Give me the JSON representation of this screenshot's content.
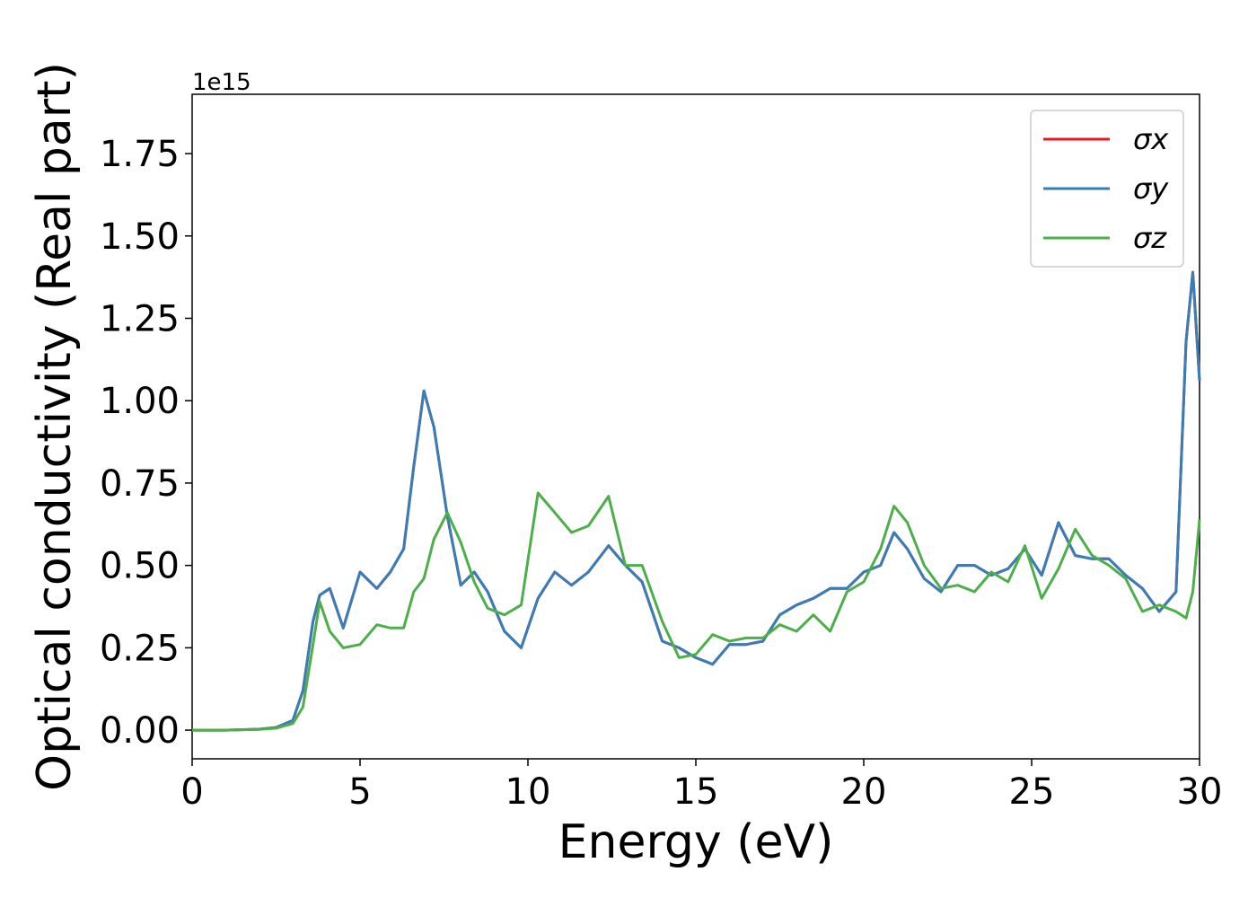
{
  "chart_data": {
    "type": "line",
    "xlabel": "Energy (eV)",
    "ylabel": "Optical conductivity (Real part)",
    "y_offset_text": "1e15",
    "x": [
      0,
      1,
      2,
      2.5,
      3,
      3.3,
      3.6,
      3.8,
      4.1,
      4.5,
      5,
      5.5,
      5.9,
      6.3,
      6.6,
      6.9,
      7.2,
      7.6,
      8,
      8.4,
      8.8,
      9.3,
      9.8,
      10.3,
      10.8,
      11.3,
      11.8,
      12.4,
      12.9,
      13.4,
      14,
      14.5,
      15,
      15.5,
      16,
      16.5,
      17,
      17.5,
      18,
      18.5,
      19,
      19.5,
      20,
      20.5,
      20.9,
      21.3,
      21.8,
      22.3,
      22.8,
      23.3,
      23.8,
      24.3,
      24.8,
      25.3,
      25.8,
      26.3,
      26.8,
      27.3,
      27.8,
      28.3,
      28.8,
      29.3,
      29.6,
      29.8,
      30
    ],
    "series": [
      {
        "name": "σx",
        "color": "#e41a1c",
        "values": [
          0,
          0,
          0.003,
          0.008,
          0.03,
          0.12,
          0.33,
          0.41,
          0.43,
          0.31,
          0.48,
          0.43,
          0.48,
          0.55,
          0.8,
          1.03,
          0.92,
          0.65,
          0.44,
          0.48,
          0.42,
          0.3,
          0.25,
          0.4,
          0.48,
          0.44,
          0.48,
          0.56,
          0.5,
          0.45,
          0.27,
          0.25,
          0.22,
          0.2,
          0.26,
          0.26,
          0.27,
          0.35,
          0.38,
          0.4,
          0.43,
          0.43,
          0.48,
          0.5,
          0.6,
          0.55,
          0.46,
          0.42,
          0.5,
          0.5,
          0.47,
          0.49,
          0.55,
          0.47,
          0.63,
          0.53,
          0.52,
          0.52,
          0.47,
          0.43,
          0.36,
          0.42,
          1.18,
          1.39,
          1.06
        ]
      },
      {
        "name": "σy",
        "color": "#377eb8",
        "values": [
          0,
          0,
          0.003,
          0.008,
          0.03,
          0.12,
          0.33,
          0.41,
          0.43,
          0.31,
          0.48,
          0.43,
          0.48,
          0.55,
          0.8,
          1.03,
          0.92,
          0.65,
          0.44,
          0.48,
          0.42,
          0.3,
          0.25,
          0.4,
          0.48,
          0.44,
          0.48,
          0.56,
          0.5,
          0.45,
          0.27,
          0.25,
          0.22,
          0.2,
          0.26,
          0.26,
          0.27,
          0.35,
          0.38,
          0.4,
          0.43,
          0.43,
          0.48,
          0.5,
          0.6,
          0.55,
          0.46,
          0.42,
          0.5,
          0.5,
          0.47,
          0.49,
          0.55,
          0.47,
          0.63,
          0.53,
          0.52,
          0.52,
          0.47,
          0.43,
          0.36,
          0.42,
          1.18,
          1.39,
          1.06
        ]
      },
      {
        "name": "σz",
        "color": "#4daf4a",
        "values": [
          0,
          0,
          0.002,
          0.006,
          0.02,
          0.07,
          0.26,
          0.39,
          0.3,
          0.25,
          0.26,
          0.32,
          0.31,
          0.31,
          0.42,
          0.46,
          0.58,
          0.66,
          0.57,
          0.45,
          0.37,
          0.35,
          0.38,
          0.72,
          0.66,
          0.6,
          0.62,
          0.71,
          0.5,
          0.5,
          0.33,
          0.22,
          0.23,
          0.29,
          0.27,
          0.28,
          0.28,
          0.32,
          0.3,
          0.35,
          0.3,
          0.42,
          0.45,
          0.55,
          0.68,
          0.63,
          0.5,
          0.43,
          0.44,
          0.42,
          0.48,
          0.45,
          0.56,
          0.4,
          0.49,
          0.61,
          0.53,
          0.5,
          0.46,
          0.36,
          0.38,
          0.36,
          0.34,
          0.42,
          0.64
        ]
      }
    ],
    "xlim": [
      0,
      30
    ],
    "xticks": [
      0,
      5,
      10,
      15,
      20,
      25,
      30
    ],
    "ylim": [
      -0.087,
      1.93
    ],
    "yticks": [
      {
        "value": 0,
        "label": "0.00"
      },
      {
        "value": 0.25,
        "label": "0.25"
      },
      {
        "value": 0.5,
        "label": "0.50"
      },
      {
        "value": 0.75,
        "label": "0.75"
      },
      {
        "value": 1.0,
        "label": "1.00"
      },
      {
        "value": 1.25,
        "label": "1.25"
      },
      {
        "value": 1.5,
        "label": "1.50"
      },
      {
        "value": 1.75,
        "label": "1.75"
      }
    ],
    "legend": "upper right",
    "grid": false
  }
}
